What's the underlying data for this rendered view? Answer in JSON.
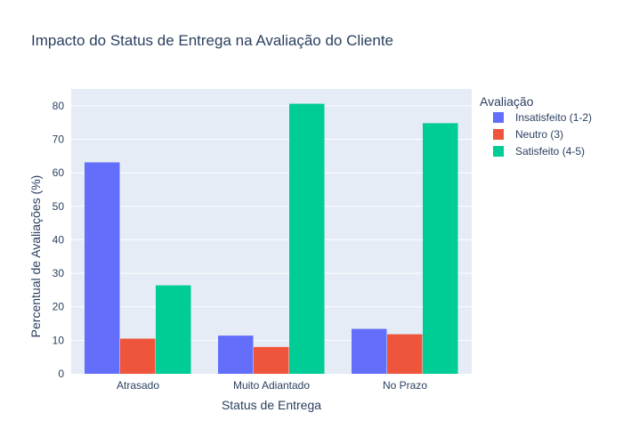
{
  "chart_data": {
    "type": "bar",
    "title": "Impacto do Status de Entrega na Avaliação do Cliente",
    "xlabel": "Status de Entrega",
    "ylabel": "Percentual de Avaliações (%)",
    "categories": [
      "Atrasado",
      "Muito Adiantado",
      "No Prazo"
    ],
    "ylim": [
      0,
      85
    ],
    "yticks": [
      0,
      10,
      20,
      30,
      40,
      50,
      60,
      70,
      80
    ],
    "grid": true,
    "legend": {
      "title": "Avaliação",
      "placement": "top-right"
    },
    "series": [
      {
        "name": "Insatisfeito (1-2)",
        "color": "#636efa",
        "values": [
          63.1,
          11.4,
          13.4
        ]
      },
      {
        "name": "Neutro (3)",
        "color": "#ef553b",
        "values": [
          10.5,
          8.0,
          11.8
        ]
      },
      {
        "name": "Satisfeito (4-5)",
        "color": "#00cc96",
        "values": [
          26.4,
          80.6,
          74.8
        ]
      }
    ],
    "colors": {
      "plot_background": "#e5ecf6",
      "grid": "#ffffff",
      "text": "#2a3f5f"
    }
  }
}
